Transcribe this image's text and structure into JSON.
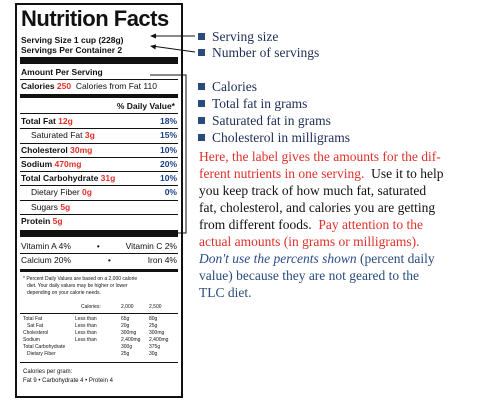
{
  "label": {
    "title": "Nutrition Facts",
    "serving_size": "Serving Size 1 cup (228g)",
    "servings_per_container": "Servings Per Container 2",
    "amount_per_serving": "Amount Per Serving",
    "calories_label": "Calories",
    "calories_value": "250",
    "calories_fat": "Calories from Fat 110",
    "daily_value_header": "% Daily Value*",
    "rows": [
      {
        "name": "Total Fat",
        "amount": "12g",
        "pct": "18%"
      },
      {
        "name": "Saturated Fat",
        "amount": "3g",
        "pct": "15%"
      },
      {
        "name": "Cholesterol",
        "amount": "30mg",
        "pct": "10%"
      },
      {
        "name": "Sodium",
        "amount": "470mg",
        "pct": "20%"
      },
      {
        "name": "Total Carbohydrate",
        "amount": "31g",
        "pct": "10%"
      },
      {
        "name": "Dietary Fiber",
        "amount": "0g",
        "pct": "0%"
      },
      {
        "name": "Sugars",
        "amount": "5g",
        "pct": ""
      },
      {
        "name": "Protein",
        "amount": "5g",
        "pct": ""
      }
    ],
    "vitamin_a": "Vitamin A 4%",
    "vitamin_c": "Vitamin C 2%",
    "calcium": "Calcium 20%",
    "iron": "Iron 4%",
    "footnote_1": "* Percent Daily Values are based on a 2,000 calorie",
    "footnote_2": "diet. Your daily values may be higher or lower",
    "footnote_3": "depending on your calorie needs.",
    "table_header": [
      "Calories:",
      "2,000",
      "2,500"
    ],
    "table_rows": [
      [
        "Total Fat",
        "Less than",
        "65g",
        "80g"
      ],
      [
        "Sat Fat",
        "Less than",
        "20g",
        "25g"
      ],
      [
        "Cholesterol",
        "Less than",
        "300mg",
        "300mg"
      ],
      [
        "Sodium",
        "Less than",
        "2,400mg",
        "2,400mg"
      ],
      [
        "Total Carbohydrate",
        "",
        "300g",
        "375g"
      ],
      [
        "Dietary Fiber",
        "",
        "25g",
        "30g"
      ]
    ],
    "per_gram_label": "Calories per gram:",
    "per_gram_values": "Fat 9  •  Carbohydrate 4  •  Protein 4"
  },
  "bullets_top": [
    "Serving size",
    "Number of servings"
  ],
  "bullets_mid": [
    "Calories",
    "Total fat in grams",
    "Saturated fat in grams",
    "Cholesterol in milligrams"
  ],
  "para": {
    "l1_red": "Here, the label gives the amounts for the dif-",
    "l2_red": "ferent nutrients in one serving.",
    "l2_dark": "Use it to help",
    "l3": "you keep track of how much fat, saturated",
    "l4": "fat, cholesterol, and calories you are getting",
    "l5_dark": "from different foods.",
    "l5_red": "Pay attention to the",
    "l6_red": "actual amounts (in grams or milligrams).",
    "l7_ital": "Don't use the percents shown",
    "l7_teal": "(percent daily",
    "l8": "value) because they are not geared to the",
    "l9": "TLC diet."
  }
}
